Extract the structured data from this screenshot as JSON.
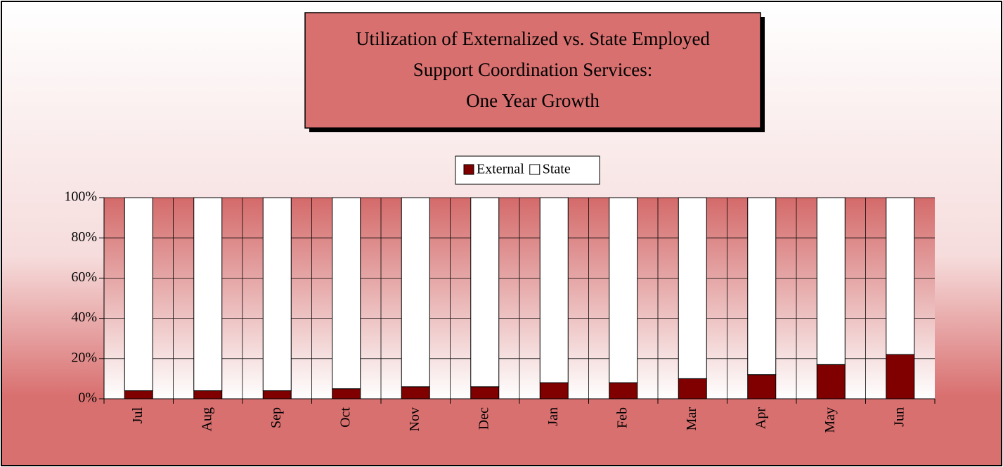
{
  "chart_data": {
    "type": "stacked_bar",
    "title": [
      "Utilization of Externalized vs. State Employed",
      "Support Coordination Services:",
      "One Year Growth"
    ],
    "categories": [
      "Jul",
      "Aug",
      "Sep",
      "Oct",
      "Nov",
      "Dec",
      "Jan",
      "Feb",
      "Mar",
      "Apr",
      "May",
      "Jun"
    ],
    "series": [
      {
        "name": "External",
        "color": "#800000",
        "values": [
          4,
          4,
          4,
          5,
          6,
          6,
          8,
          8,
          10,
          12,
          17,
          22
        ]
      },
      {
        "name": "State",
        "color": "#ffffff",
        "values": [
          96,
          96,
          96,
          95,
          94,
          94,
          92,
          92,
          90,
          88,
          83,
          78
        ]
      }
    ],
    "ylim": [
      0,
      100
    ],
    "yticks": [
      {
        "value": 0,
        "label": "0%"
      },
      {
        "value": 20,
        "label": "20%"
      },
      {
        "value": 40,
        "label": "40%"
      },
      {
        "value": 60,
        "label": "60%"
      },
      {
        "value": 80,
        "label": "80%"
      },
      {
        "value": 100,
        "label": "100%"
      }
    ],
    "grid": true,
    "legend": "top"
  }
}
